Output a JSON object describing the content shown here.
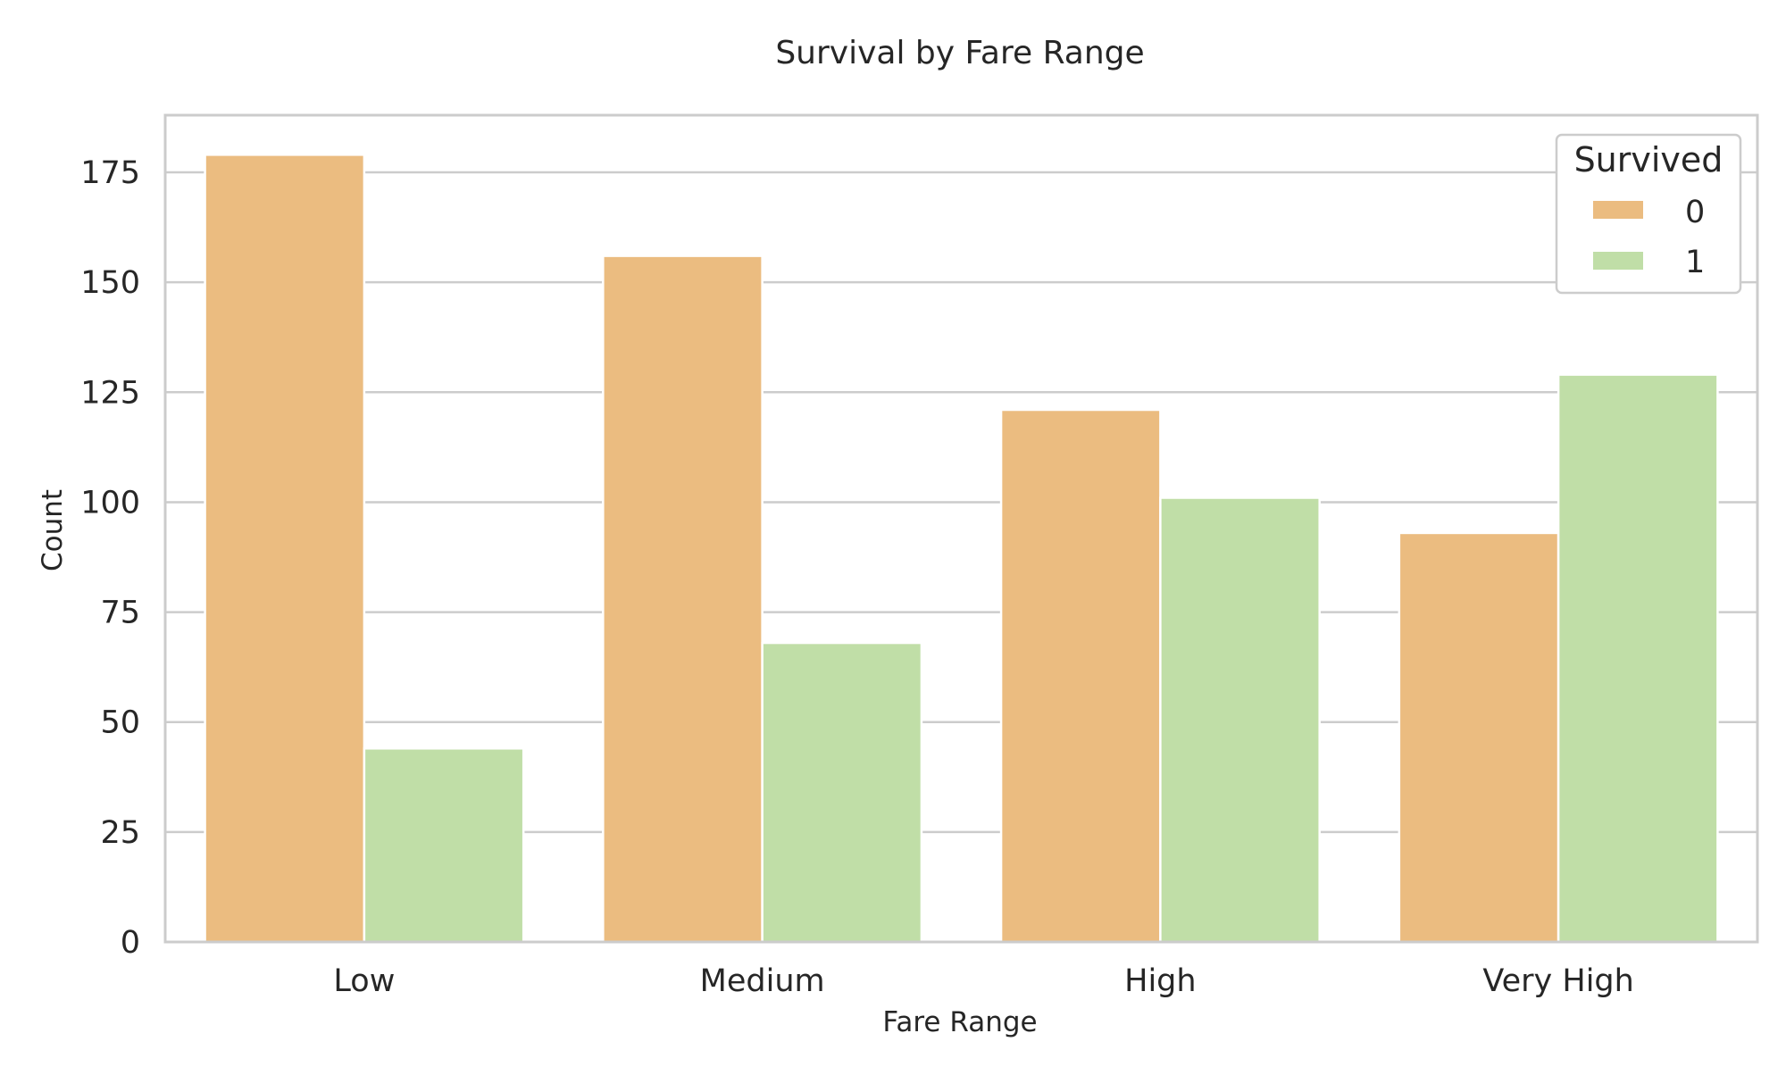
{
  "chart_data": {
    "type": "bar",
    "title": "Survival by Fare Range",
    "xlabel": "Fare Range",
    "ylabel": "Count",
    "categories": [
      "Low",
      "Medium",
      "High",
      "Very High"
    ],
    "series": [
      {
        "name": "0",
        "color": "#ebbc80",
        "values": [
          179,
          156,
          121,
          93
        ]
      },
      {
        "name": "1",
        "color": "#c0dea7",
        "values": [
          44,
          68,
          101,
          129
        ]
      }
    ],
    "ylim": [
      0,
      188
    ],
    "yticks": [
      0,
      25,
      50,
      75,
      100,
      125,
      150,
      175
    ],
    "grid": "horizontal",
    "legend": {
      "title": "Survived",
      "position": "top-right"
    }
  }
}
